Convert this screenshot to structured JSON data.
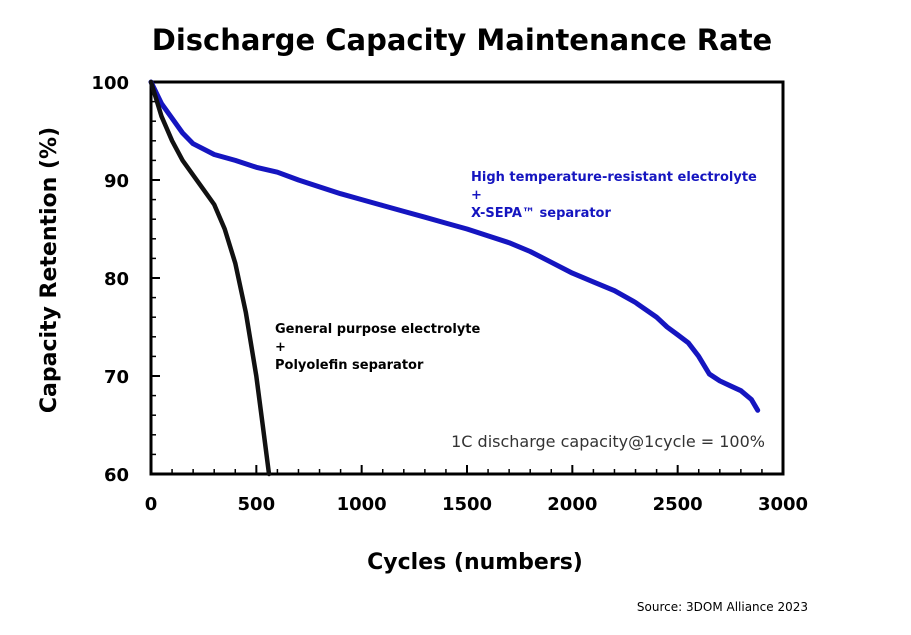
{
  "chart_data": {
    "type": "line",
    "title": "Discharge Capacity Maintenance Rate",
    "xlabel": "Cycles (numbers)",
    "ylabel": "Capacity Retention (%)",
    "xlim": [
      0,
      3000
    ],
    "ylim": [
      60,
      100
    ],
    "xticks": [
      0,
      500,
      1000,
      1500,
      2000,
      2500,
      3000
    ],
    "yticks": [
      60,
      70,
      80,
      90,
      100
    ],
    "grid": false,
    "series": [
      {
        "name": "High temperature-resistant electrolyte + X-SEPA™ separator",
        "color": "#1515c0",
        "x": [
          0,
          50,
          100,
          150,
          200,
          300,
          400,
          500,
          600,
          700,
          800,
          900,
          1000,
          1100,
          1200,
          1300,
          1400,
          1500,
          1600,
          1700,
          1800,
          1900,
          2000,
          2100,
          2200,
          2300,
          2400,
          2450,
          2500,
          2550,
          2600,
          2650,
          2700,
          2750,
          2800,
          2850,
          2880
        ],
        "y": [
          100,
          97.8,
          96.3,
          94.8,
          93.7,
          92.6,
          92.0,
          91.3,
          90.8,
          90.0,
          89.3,
          88.6,
          88.0,
          87.4,
          86.8,
          86.2,
          85.6,
          85.0,
          84.3,
          83.6,
          82.7,
          81.6,
          80.5,
          79.6,
          78.7,
          77.5,
          76.0,
          75.0,
          74.2,
          73.4,
          72.0,
          70.2,
          69.5,
          69.0,
          68.5,
          67.6,
          66.5
        ]
      },
      {
        "name": "General purpose electrolyte + Polyolefin separator",
        "color": "#111111",
        "x": [
          0,
          50,
          100,
          150,
          200,
          250,
          300,
          350,
          400,
          450,
          500,
          530,
          560
        ],
        "y": [
          100,
          96.5,
          94.0,
          92.0,
          90.5,
          89.0,
          87.5,
          85.0,
          81.5,
          76.5,
          70.0,
          65.0,
          60.0
        ]
      }
    ],
    "annotations": [
      {
        "text": "High temperature-resistant electrolyte",
        "color": "#1515c0"
      },
      {
        "text": "+",
        "color": "#1515c0"
      },
      {
        "text": "X-SEPA™ separator",
        "color": "#1515c0"
      },
      {
        "text": "General purpose electrolyte",
        "color": "#000000"
      },
      {
        "text": "+",
        "color": "#000000"
      },
      {
        "text": "Polyolefin separator",
        "color": "#000000"
      }
    ],
    "note": "1C discharge capacity@1cycle = 100%",
    "source": "Source: 3DOM Alliance 2023"
  }
}
